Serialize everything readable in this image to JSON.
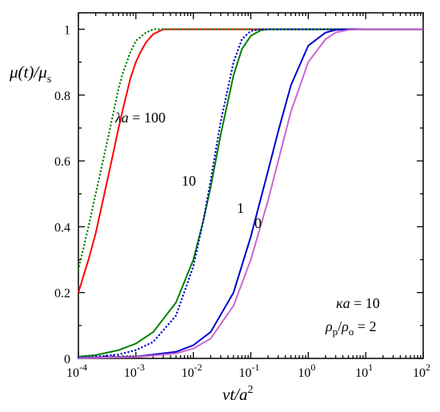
{
  "chart_data": {
    "type": "line",
    "x_scale": "log",
    "xlim": [
      0.0001,
      100
    ],
    "ylim": [
      0,
      1.05
    ],
    "xlabel": {
      "base": "νt/a",
      "sup": "2"
    },
    "ylabel": {
      "main": "μ(t)/μ",
      "sub": "s"
    },
    "grid": false,
    "x_ticks": [
      {
        "value": 0.0001,
        "mantissa": "10",
        "exp": "-4"
      },
      {
        "value": 0.001,
        "mantissa": "10",
        "exp": "-3"
      },
      {
        "value": 0.01,
        "mantissa": "10",
        "exp": "-2"
      },
      {
        "value": 0.1,
        "mantissa": "10",
        "exp": "-1"
      },
      {
        "value": 1,
        "mantissa": "10",
        "exp": "0"
      },
      {
        "value": 10,
        "mantissa": "10",
        "exp": "1"
      },
      {
        "value": 100,
        "mantissa": "10",
        "exp": "2"
      }
    ],
    "y_ticks": [
      {
        "value": 0,
        "label": "0"
      },
      {
        "value": 0.2,
        "label": "0.2"
      },
      {
        "value": 0.4,
        "label": "0.4"
      },
      {
        "value": 0.6,
        "label": "0.6"
      },
      {
        "value": 0.8,
        "label": "0.8"
      },
      {
        "value": 1,
        "label": "1"
      }
    ],
    "series": [
      {
        "color": "#ff0000",
        "dash": "solid",
        "x": [
          0.0001,
          0.00015,
          0.0002,
          0.0003,
          0.0004,
          0.0005,
          0.0006,
          0.0008,
          0.001,
          0.0012,
          0.0015,
          0.002,
          0.003,
          0.004,
          0.1,
          100
        ],
        "y": [
          0.2,
          0.3,
          0.38,
          0.52,
          0.62,
          0.7,
          0.76,
          0.85,
          0.9,
          0.93,
          0.96,
          0.985,
          1.0,
          1.0,
          1.0,
          1.0
        ]
      },
      {
        "color": "#008000",
        "dash": "dotted",
        "x": [
          0.0001,
          0.00015,
          0.0002,
          0.0003,
          0.0004,
          0.0005,
          0.0006,
          0.0008,
          0.001,
          0.0015,
          0.002,
          0.003,
          0.1,
          100
        ],
        "y": [
          0.27,
          0.4,
          0.5,
          0.64,
          0.74,
          0.82,
          0.87,
          0.93,
          0.965,
          0.99,
          1.0,
          1.0,
          1.0,
          1.0
        ]
      },
      {
        "color": "#008000",
        "dash": "solid",
        "x": [
          0.0001,
          0.0002,
          0.0005,
          0.001,
          0.002,
          0.005,
          0.01,
          0.015,
          0.02,
          0.03,
          0.05,
          0.07,
          0.1,
          0.15,
          0.2,
          100
        ],
        "y": [
          0.005,
          0.01,
          0.025,
          0.045,
          0.08,
          0.17,
          0.3,
          0.42,
          0.52,
          0.68,
          0.86,
          0.94,
          0.98,
          0.997,
          1.0,
          1.0
        ]
      },
      {
        "color": "#0000cd",
        "dash": "dotted",
        "x": [
          0.0001,
          0.0002,
          0.0005,
          0.001,
          0.002,
          0.005,
          0.01,
          0.015,
          0.02,
          0.03,
          0.05,
          0.07,
          0.1,
          0.15,
          100
        ],
        "y": [
          0.003,
          0.005,
          0.012,
          0.025,
          0.05,
          0.13,
          0.28,
          0.42,
          0.54,
          0.72,
          0.9,
          0.97,
          0.995,
          1.0,
          1.0
        ]
      },
      {
        "color": "#0000cd",
        "dash": "solid",
        "x": [
          0.0001,
          0.001,
          0.005,
          0.01,
          0.02,
          0.05,
          0.1,
          0.2,
          0.3,
          0.5,
          1,
          2,
          3,
          5,
          100
        ],
        "y": [
          0.002,
          0.005,
          0.02,
          0.04,
          0.08,
          0.2,
          0.37,
          0.57,
          0.69,
          0.83,
          0.95,
          0.99,
          0.998,
          1.0,
          1.0
        ]
      },
      {
        "color": "#cc66cc",
        "dash": "solid",
        "x": [
          0.0001,
          0.001,
          0.005,
          0.01,
          0.02,
          0.05,
          0.1,
          0.2,
          0.3,
          0.5,
          1,
          2,
          3,
          5,
          10,
          100
        ],
        "y": [
          0.001,
          0.004,
          0.015,
          0.03,
          0.06,
          0.16,
          0.3,
          0.48,
          0.6,
          0.75,
          0.9,
          0.97,
          0.99,
          0.998,
          1.0,
          1.0
        ]
      }
    ],
    "annotations": {
      "lambda": {
        "var": "λa",
        "eq": " = 100"
      },
      "ten": "10",
      "one": "1",
      "zero": "0",
      "kappa": {
        "var": "κa",
        "eq": " = 10"
      },
      "rho": {
        "num": "ρ",
        "num_sub": "p",
        "slash": "/",
        "den": "ρ",
        "den_sub": "o",
        "eq": " = 2"
      }
    }
  }
}
